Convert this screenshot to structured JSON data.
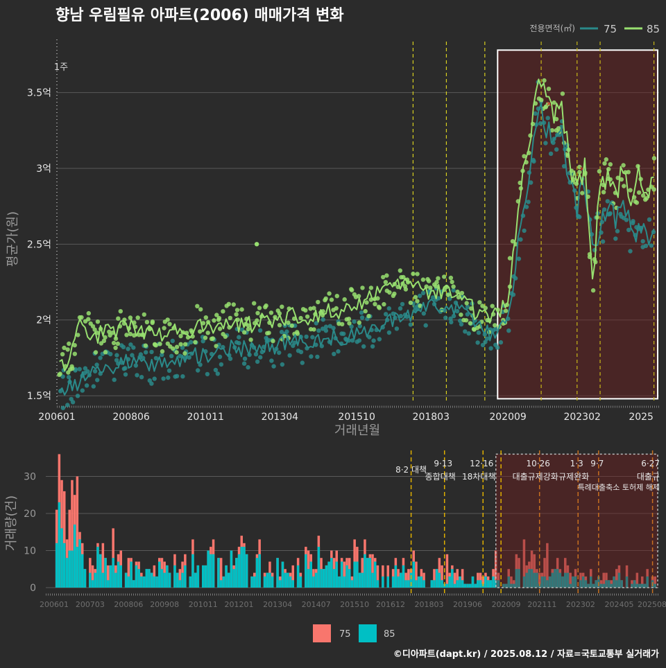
{
  "title": "향남 우림필유 아파트(2006) 매매가격 변화",
  "legend_top": {
    "title": "전용면적(㎡)",
    "items": [
      {
        "label": "75",
        "color": "#2a8a8a"
      },
      {
        "label": "85",
        "color": "#98e070"
      }
    ]
  },
  "legend_bottom": {
    "items": [
      {
        "label": "75",
        "color": "#f8766d"
      },
      {
        "label": "85",
        "color": "#00bfc4"
      }
    ]
  },
  "footer": "©디아파트(dapt.kr) / 2025.08.12 / 자료=국토교통부 실거래가",
  "chart_data": [
    {
      "type": "line",
      "title": "향남 우림필유 아파트(2006) 매매가격 변화",
      "xlabel": "거래년월",
      "ylabel": "평균가(원)",
      "x_range": [
        "2006-01",
        "2025-08"
      ],
      "ylim": [
        1.45,
        3.85
      ],
      "y_ticks": [
        {
          "value": 1.5,
          "label": "1.5억"
        },
        {
          "value": 2.0,
          "label": "2억"
        },
        {
          "value": 2.5,
          "label": "2.5억"
        },
        {
          "value": 3.0,
          "label": "3억"
        },
        {
          "value": 3.5,
          "label": "3.5억"
        }
      ],
      "x_ticks": [
        "200601",
        "200806",
        "201011",
        "201304",
        "201510",
        "201803",
        "202009",
        "202302",
        "2025"
      ],
      "marker_label": "1주",
      "policy_lines": [
        "2017-08",
        "2018-09",
        "2019-12",
        "2021-10",
        "2022-12",
        "2023-09",
        "2025-06"
      ],
      "highlight": {
        "from": "2020-05",
        "to": "2025-08",
        "y_from": 1.48,
        "y_to": 3.78
      },
      "series": [
        {
          "name": "75",
          "points": [
            [
              "2006-02",
              1.52
            ],
            [
              "2006-06",
              1.56
            ],
            [
              "2006-10",
              1.6
            ],
            [
              "2007-03",
              1.66
            ],
            [
              "2007-09",
              1.7
            ],
            [
              "2008-03",
              1.72
            ],
            [
              "2008-09",
              1.74
            ],
            [
              "2009-03",
              1.7
            ],
            [
              "2009-09",
              1.74
            ],
            [
              "2010-03",
              1.72
            ],
            [
              "2010-09",
              1.78
            ],
            [
              "2011-03",
              1.76
            ],
            [
              "2011-09",
              1.82
            ],
            [
              "2012-03",
              1.8
            ],
            [
              "2012-09",
              1.84
            ],
            [
              "2013-03",
              1.82
            ],
            [
              "2013-09",
              1.86
            ],
            [
              "2014-03",
              1.84
            ],
            [
              "2014-09",
              1.9
            ],
            [
              "2015-03",
              1.88
            ],
            [
              "2015-09",
              1.92
            ],
            [
              "2016-03",
              1.95
            ],
            [
              "2016-09",
              1.98
            ],
            [
              "2017-03",
              2.03
            ],
            [
              "2017-09",
              2.06
            ],
            [
              "2018-03",
              2.08
            ],
            [
              "2018-09",
              2.12
            ],
            [
              "2019-03",
              2.06
            ],
            [
              "2019-09",
              1.98
            ],
            [
              "2020-03",
              1.9
            ],
            [
              "2020-09",
              2.0
            ],
            [
              "2020-12",
              2.35
            ],
            [
              "2021-03",
              2.7
            ],
            [
              "2021-06",
              3.0
            ],
            [
              "2021-09",
              3.45
            ],
            [
              "2021-12",
              3.28
            ],
            [
              "2022-03",
              3.15
            ],
            [
              "2022-06",
              3.2
            ],
            [
              "2022-09",
              2.95
            ],
            [
              "2022-12",
              2.75
            ],
            [
              "2023-03",
              2.9
            ],
            [
              "2023-06",
              2.55
            ],
            [
              "2023-09",
              2.6
            ],
            [
              "2023-12",
              2.72
            ],
            [
              "2024-03",
              2.65
            ],
            [
              "2024-06",
              2.8
            ],
            [
              "2024-09",
              2.55
            ],
            [
              "2024-12",
              2.62
            ],
            [
              "2025-03",
              2.58
            ],
            [
              "2025-06",
              2.6
            ]
          ]
        },
        {
          "name": "85",
          "points": [
            [
              "2006-02",
              1.7
            ],
            [
              "2006-06",
              1.75
            ],
            [
              "2006-10",
              1.95
            ],
            [
              "2007-03",
              1.9
            ],
            [
              "2007-09",
              1.92
            ],
            [
              "2008-03",
              1.95
            ],
            [
              "2008-09",
              1.95
            ],
            [
              "2009-03",
              1.88
            ],
            [
              "2009-09",
              1.92
            ],
            [
              "2010-03",
              1.9
            ],
            [
              "2010-09",
              1.98
            ],
            [
              "2011-03",
              1.95
            ],
            [
              "2011-09",
              2.0
            ],
            [
              "2012-03",
              1.96
            ],
            [
              "2012-09",
              2.0
            ],
            [
              "2013-03",
              1.98
            ],
            [
              "2013-09",
              2.02
            ],
            [
              "2014-03",
              2.0
            ],
            [
              "2014-09",
              2.05
            ],
            [
              "2015-03",
              2.04
            ],
            [
              "2015-09",
              2.08
            ],
            [
              "2016-03",
              2.15
            ],
            [
              "2016-09",
              2.2
            ],
            [
              "2017-03",
              2.22
            ],
            [
              "2017-09",
              2.22
            ],
            [
              "2018-03",
              2.18
            ],
            [
              "2018-09",
              2.2
            ],
            [
              "2019-03",
              2.12
            ],
            [
              "2019-09",
              2.05
            ],
            [
              "2020-03",
              2.0
            ],
            [
              "2020-09",
              2.12
            ],
            [
              "2020-12",
              2.6
            ],
            [
              "2021-03",
              2.95
            ],
            [
              "2021-06",
              3.25
            ],
            [
              "2021-09",
              3.58
            ],
            [
              "2021-12",
              3.42
            ],
            [
              "2022-03",
              3.35
            ],
            [
              "2022-06",
              3.38
            ],
            [
              "2022-09",
              3.05
            ],
            [
              "2022-12",
              2.85
            ],
            [
              "2023-03",
              2.98
            ],
            [
              "2023-06",
              2.2
            ],
            [
              "2023-09",
              2.95
            ],
            [
              "2023-12",
              2.92
            ],
            [
              "2024-03",
              2.85
            ],
            [
              "2024-06",
              2.98
            ],
            [
              "2024-09",
              2.8
            ],
            [
              "2024-12",
              2.95
            ],
            [
              "2025-03",
              2.85
            ],
            [
              "2025-06",
              2.95
            ]
          ]
        }
      ]
    },
    {
      "type": "bar",
      "ylabel": "거래량(건)",
      "ylim": [
        0,
        37
      ],
      "y_ticks": [
        0,
        10,
        20,
        30
      ],
      "x_range": [
        "2006-01",
        "2025-08"
      ],
      "x_ticks": [
        "200601",
        "200703",
        "200806",
        "200908",
        "201011",
        "201201",
        "201304",
        "201407",
        "201510",
        "201612",
        "201803",
        "201906",
        "202009",
        "202111",
        "202302",
        "202405",
        "202508"
      ],
      "highlight": {
        "from": "2020-05",
        "to": "2025-08",
        "y_to": 36
      },
      "policy_lines": [
        {
          "date": "2017-08",
          "date_label": "",
          "label1": "8·2 대책",
          "label2": "",
          "color": "#e0b000"
        },
        {
          "date": "2018-09",
          "date_label": "9·13",
          "label1": "종합대책",
          "label2": "",
          "color": "#e0b000"
        },
        {
          "date": "2019-12",
          "date_label": "12·16",
          "label1": "18차대책",
          "label2": "",
          "color": "#e0b000"
        },
        {
          "date": "2020-07",
          "date_label": "",
          "label1": "",
          "label2": "",
          "color": "#e0b000"
        },
        {
          "date": "2021-10",
          "date_label": "10·26",
          "label1": "대출규제강화",
          "label2": "",
          "color": "#c87020"
        },
        {
          "date": "2023-01",
          "date_label": "1·3",
          "label1": "규제완화",
          "label2": "",
          "color": "#c87020"
        },
        {
          "date": "2023-09",
          "date_label": "9·7",
          "label1": "",
          "label2": "특례대출축소 토허제 해제",
          "color": "#c87020"
        },
        {
          "date": "2025-06",
          "date_label": "6·27",
          "label1": "대출규",
          "label2": "",
          "color": "#c87020"
        }
      ],
      "series": [
        {
          "name": "75",
          "annual_values": [
            20,
            8,
            5,
            4,
            6,
            7,
            6,
            5,
            6,
            5,
            6,
            5,
            4,
            3,
            3,
            5,
            4,
            3,
            3,
            3
          ]
        },
        {
          "name": "85",
          "annual_values": [
            12,
            6,
            4,
            4,
            6,
            6,
            6,
            5,
            6,
            5,
            5,
            4,
            3,
            2,
            2,
            3,
            3,
            2,
            2,
            2
          ]
        }
      ],
      "peak_months": [
        {
          "date": "2006-03",
          "v75": 36,
          "v85": 23
        },
        {
          "date": "2006-04",
          "v75": 29,
          "v85": 16
        },
        {
          "date": "2006-05",
          "v75": 26,
          "v85": 12
        },
        {
          "date": "2006-02",
          "v75": 21,
          "v85": 12
        }
      ]
    }
  ]
}
